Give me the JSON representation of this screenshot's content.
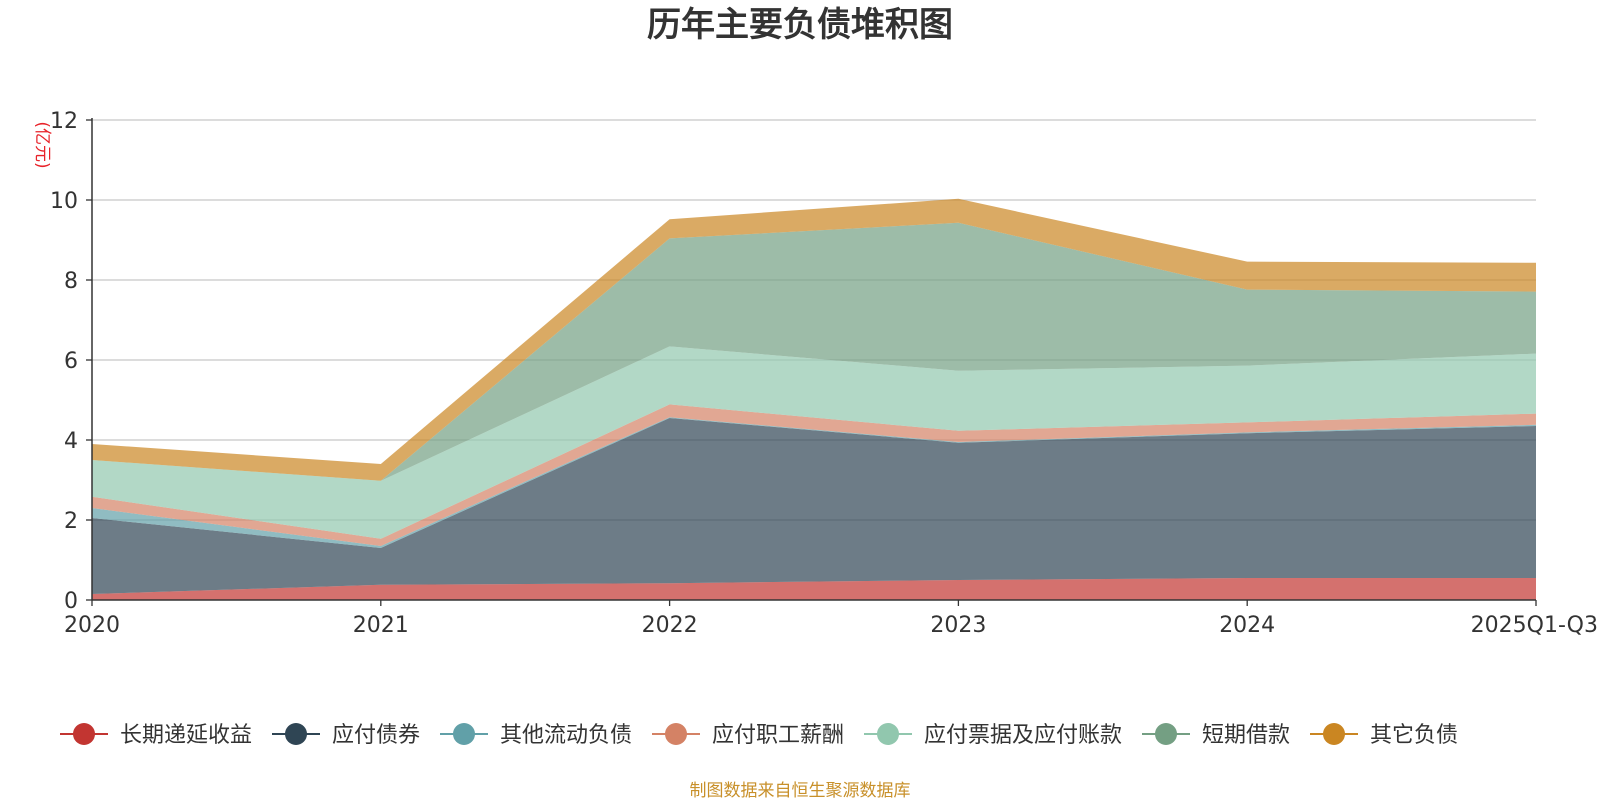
{
  "chart_data": {
    "type": "area",
    "stacked": true,
    "title": "历年主要负债堆积图",
    "unit_label": "(亿元)",
    "categories": [
      "2020",
      "2021",
      "2022",
      "2023",
      "2024",
      "2025Q1-Q3"
    ],
    "ylim": [
      0,
      12
    ],
    "yticks": [
      "0",
      "2",
      "4",
      "6",
      "8",
      "10",
      "12"
    ],
    "grid": true,
    "legend_position": "bottom",
    "series": [
      {
        "name": "长期递延收益",
        "color": "#c23531",
        "values": [
          0.15,
          0.38,
          0.42,
          0.5,
          0.55,
          0.55
        ]
      },
      {
        "name": "应付债券",
        "color": "#2f4554",
        "values": [
          1.9,
          0.92,
          4.13,
          3.43,
          3.62,
          3.8
        ]
      },
      {
        "name": "其他流动负债",
        "color": "#61a0a8",
        "values": [
          0.25,
          0.05,
          0.02,
          0.02,
          0.02,
          0.03
        ]
      },
      {
        "name": "应付职工薪酬",
        "color": "#d48265",
        "values": [
          0.28,
          0.18,
          0.32,
          0.28,
          0.25,
          0.28
        ]
      },
      {
        "name": "应付票据及应付账款",
        "color": "#91c7ae",
        "values": [
          0.92,
          1.45,
          1.45,
          1.5,
          1.42,
          1.5
        ]
      },
      {
        "name": "短期借款",
        "color": "#749f83",
        "values": [
          0.0,
          0.0,
          2.7,
          3.7,
          1.9,
          1.55
        ]
      },
      {
        "name": "其它负债",
        "color": "#ca8622",
        "values": [
          0.4,
          0.42,
          0.48,
          0.6,
          0.7,
          0.72
        ]
      }
    ],
    "source_note": "制图数据来自恒生聚源数据库"
  }
}
